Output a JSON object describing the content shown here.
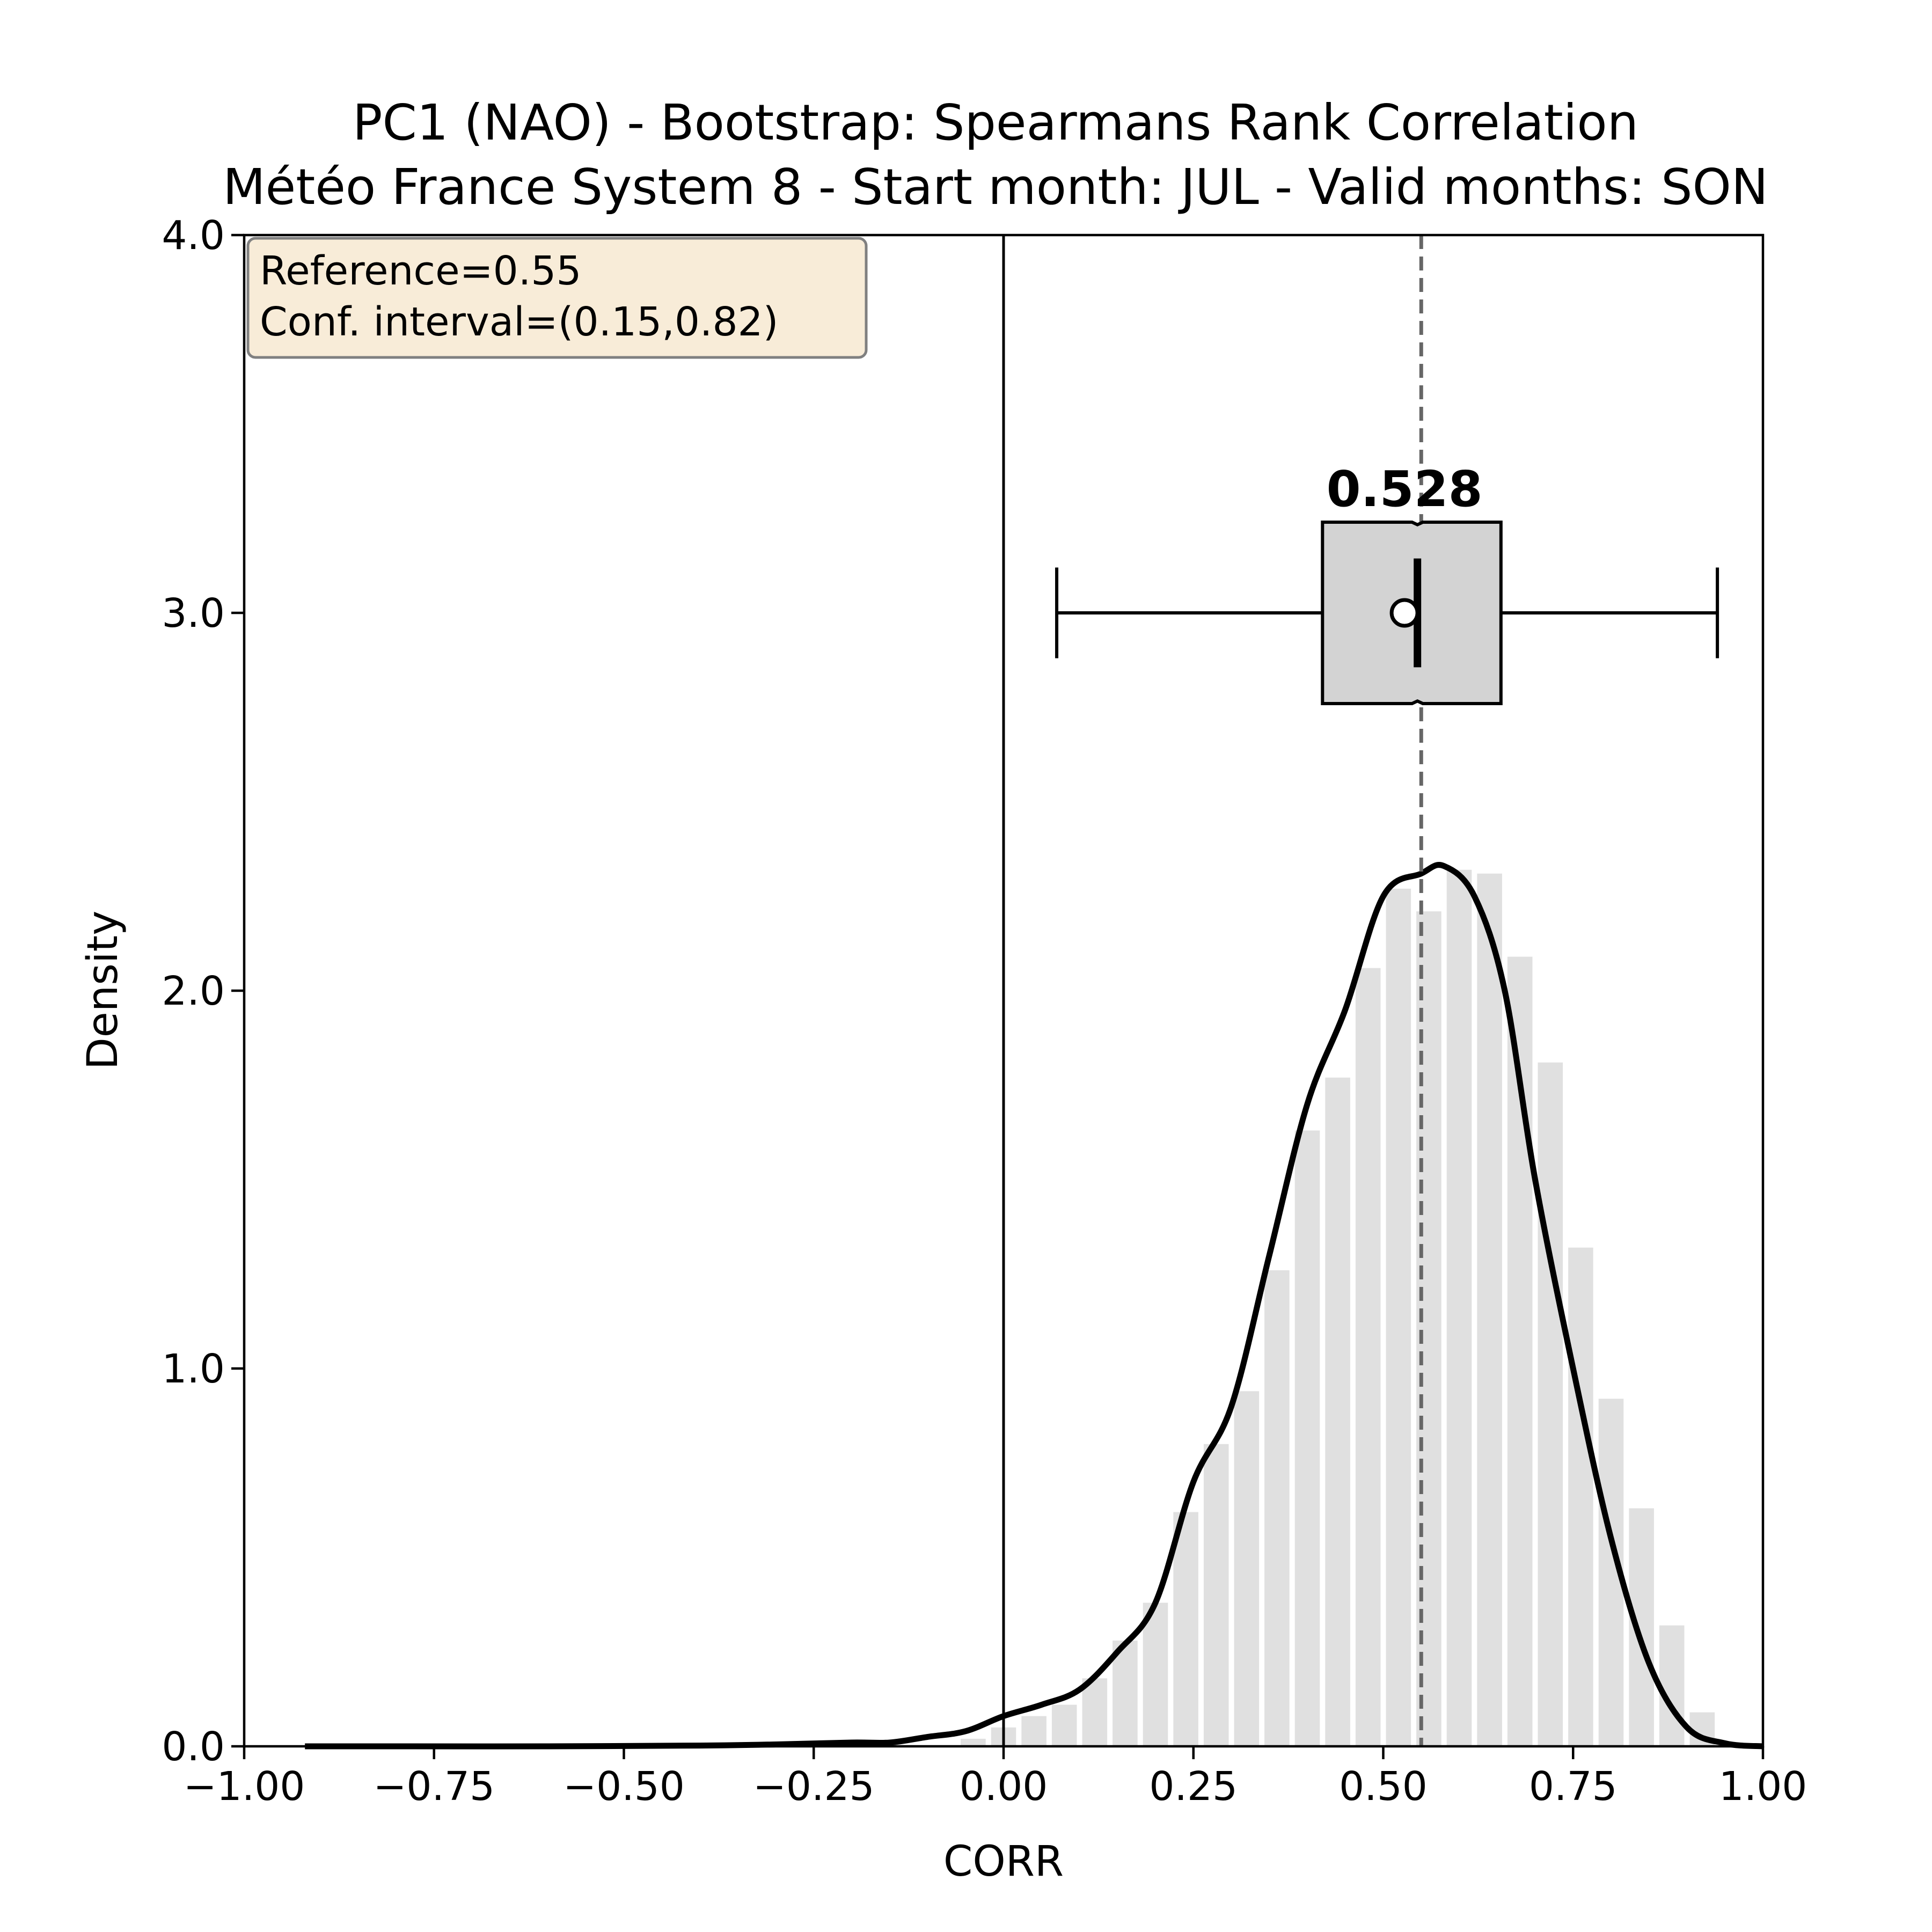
{
  "chart_data": {
    "type": "histogram",
    "title": "PC1 (NAO) - Bootstrap: Spearmans Rank Correlation",
    "subtitle": "Météo France System 8 - Start month: JUL - Valid months: SON",
    "xlabel": "CORR",
    "ylabel": "Density",
    "xlim": [
      -1.0,
      1.0
    ],
    "ylim": [
      0.0,
      4.0
    ],
    "x_ticks": [
      "−1.00",
      "−0.75",
      "−0.50",
      "−0.25",
      "0.00",
      "0.25",
      "0.50",
      "0.75",
      "1.00"
    ],
    "y_ticks": [
      "0.0",
      "1.0",
      "2.0",
      "3.0",
      "4.0"
    ],
    "grid": false,
    "histogram": {
      "bin_centers": [
        -0.04,
        0.0,
        0.04,
        0.08,
        0.12,
        0.16,
        0.2,
        0.24,
        0.28,
        0.32,
        0.36,
        0.4,
        0.44,
        0.48,
        0.52,
        0.56,
        0.6,
        0.64,
        0.68,
        0.72,
        0.76,
        0.8,
        0.84,
        0.88,
        0.92
      ],
      "bin_width": 0.04,
      "density": [
        0.02,
        0.05,
        0.08,
        0.11,
        0.18,
        0.28,
        0.38,
        0.62,
        0.8,
        0.94,
        1.26,
        1.63,
        1.77,
        2.06,
        2.27,
        2.21,
        2.32,
        2.31,
        2.09,
        1.81,
        1.32,
        0.92,
        0.63,
        0.32,
        0.09
      ],
      "color": "#e0e0e0"
    },
    "kde": {
      "x": [
        -0.92,
        -0.8,
        -0.6,
        -0.4,
        -0.3,
        -0.2,
        -0.15,
        -0.1,
        -0.05,
        0.0,
        0.05,
        0.1,
        0.15,
        0.2,
        0.25,
        0.3,
        0.35,
        0.4,
        0.45,
        0.5,
        0.55,
        0.58,
        0.62,
        0.66,
        0.7,
        0.75,
        0.8,
        0.85,
        0.9,
        0.95,
        1.0
      ],
      "y": [
        0.0,
        0.0,
        0.0,
        0.002,
        0.005,
        0.01,
        0.01,
        0.025,
        0.04,
        0.08,
        0.11,
        0.15,
        0.25,
        0.38,
        0.7,
        0.9,
        1.3,
        1.7,
        1.95,
        2.25,
        2.31,
        2.33,
        2.25,
        2.0,
        1.5,
        1.0,
        0.55,
        0.22,
        0.05,
        0.008,
        0.0
      ],
      "color": "#000000"
    },
    "zero_line": {
      "x": 0.0,
      "color": "#000000"
    },
    "reference_line": {
      "x": 0.55,
      "style": "dashed",
      "color": "#666666"
    },
    "boxplot": {
      "y_center": 3.0,
      "whisker_low": 0.07,
      "q1": 0.42,
      "median": 0.545,
      "q3": 0.655,
      "whisker_high": 0.94,
      "mean": 0.528,
      "box_half_height": 0.24,
      "fill": "#d3d3d3",
      "median_label": "0.528"
    },
    "info_box": {
      "lines": [
        "Reference=0.55",
        "Conf. interval=(0.15,0.82)"
      ],
      "placement": "top-left",
      "fill": "#f8ecd8",
      "edge": "#808080"
    }
  }
}
